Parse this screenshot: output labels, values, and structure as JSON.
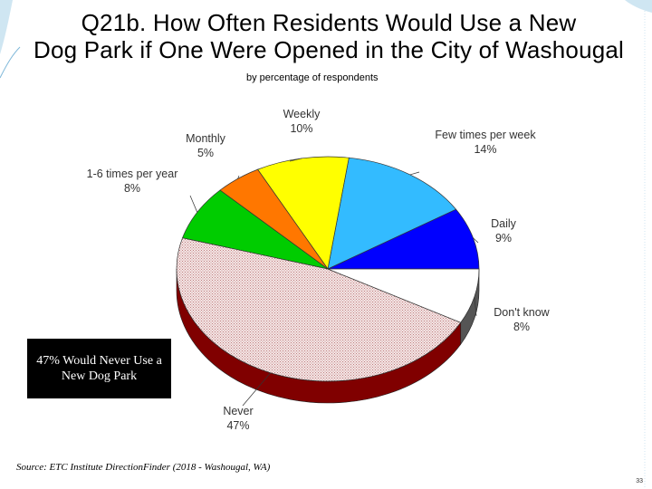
{
  "slide": {
    "title_line1": "Q21b. How Often Residents Would Use a New",
    "title_line2": "Dog Park if One Were Opened in the City of Washougal",
    "subtitle": "by percentage of respondents",
    "callout": "47% Would Never Use a New Dog Park",
    "source": "Source:  ETC Institute DirectionFinder (2018 - Washougal, WA)",
    "page_number": "33"
  },
  "chart_data": {
    "type": "pie",
    "title": "Q21b. How Often Residents Would Use a New Dog Park if One Were Opened in the City of Washougal",
    "subtitle": "by percentage of respondents",
    "slices": [
      {
        "name": "Daily",
        "label": "Daily",
        "value_label": "9%",
        "value": 9,
        "color": "#0000ff",
        "side": "#00008b"
      },
      {
        "name": "Few times per week",
        "label": "Few times per week",
        "value_label": "14%",
        "value": 14,
        "color": "#33bbff",
        "side": "#1f7fb0"
      },
      {
        "name": "Weekly",
        "label": "Weekly",
        "value_label": "10%",
        "value": 10,
        "color": "#ffff00",
        "side": "#b5b500"
      },
      {
        "name": "Monthly",
        "label": "Monthly",
        "value_label": "5%",
        "value": 5,
        "color": "#ff7700",
        "side": "#b35300"
      },
      {
        "name": "1-6 times per year",
        "label": "1-6 times per year",
        "value_label": "8%",
        "value": 8,
        "color": "#00cc00",
        "side": "#008a00"
      },
      {
        "name": "Never",
        "label": "Never",
        "value_label": "47%",
        "value": 47,
        "color": "#f0dede",
        "side": "#800000"
      },
      {
        "name": "Don't know",
        "label": "Don't know",
        "value_label": "8%",
        "value": 8,
        "color": "#ffffff",
        "side": "#555555"
      }
    ]
  }
}
